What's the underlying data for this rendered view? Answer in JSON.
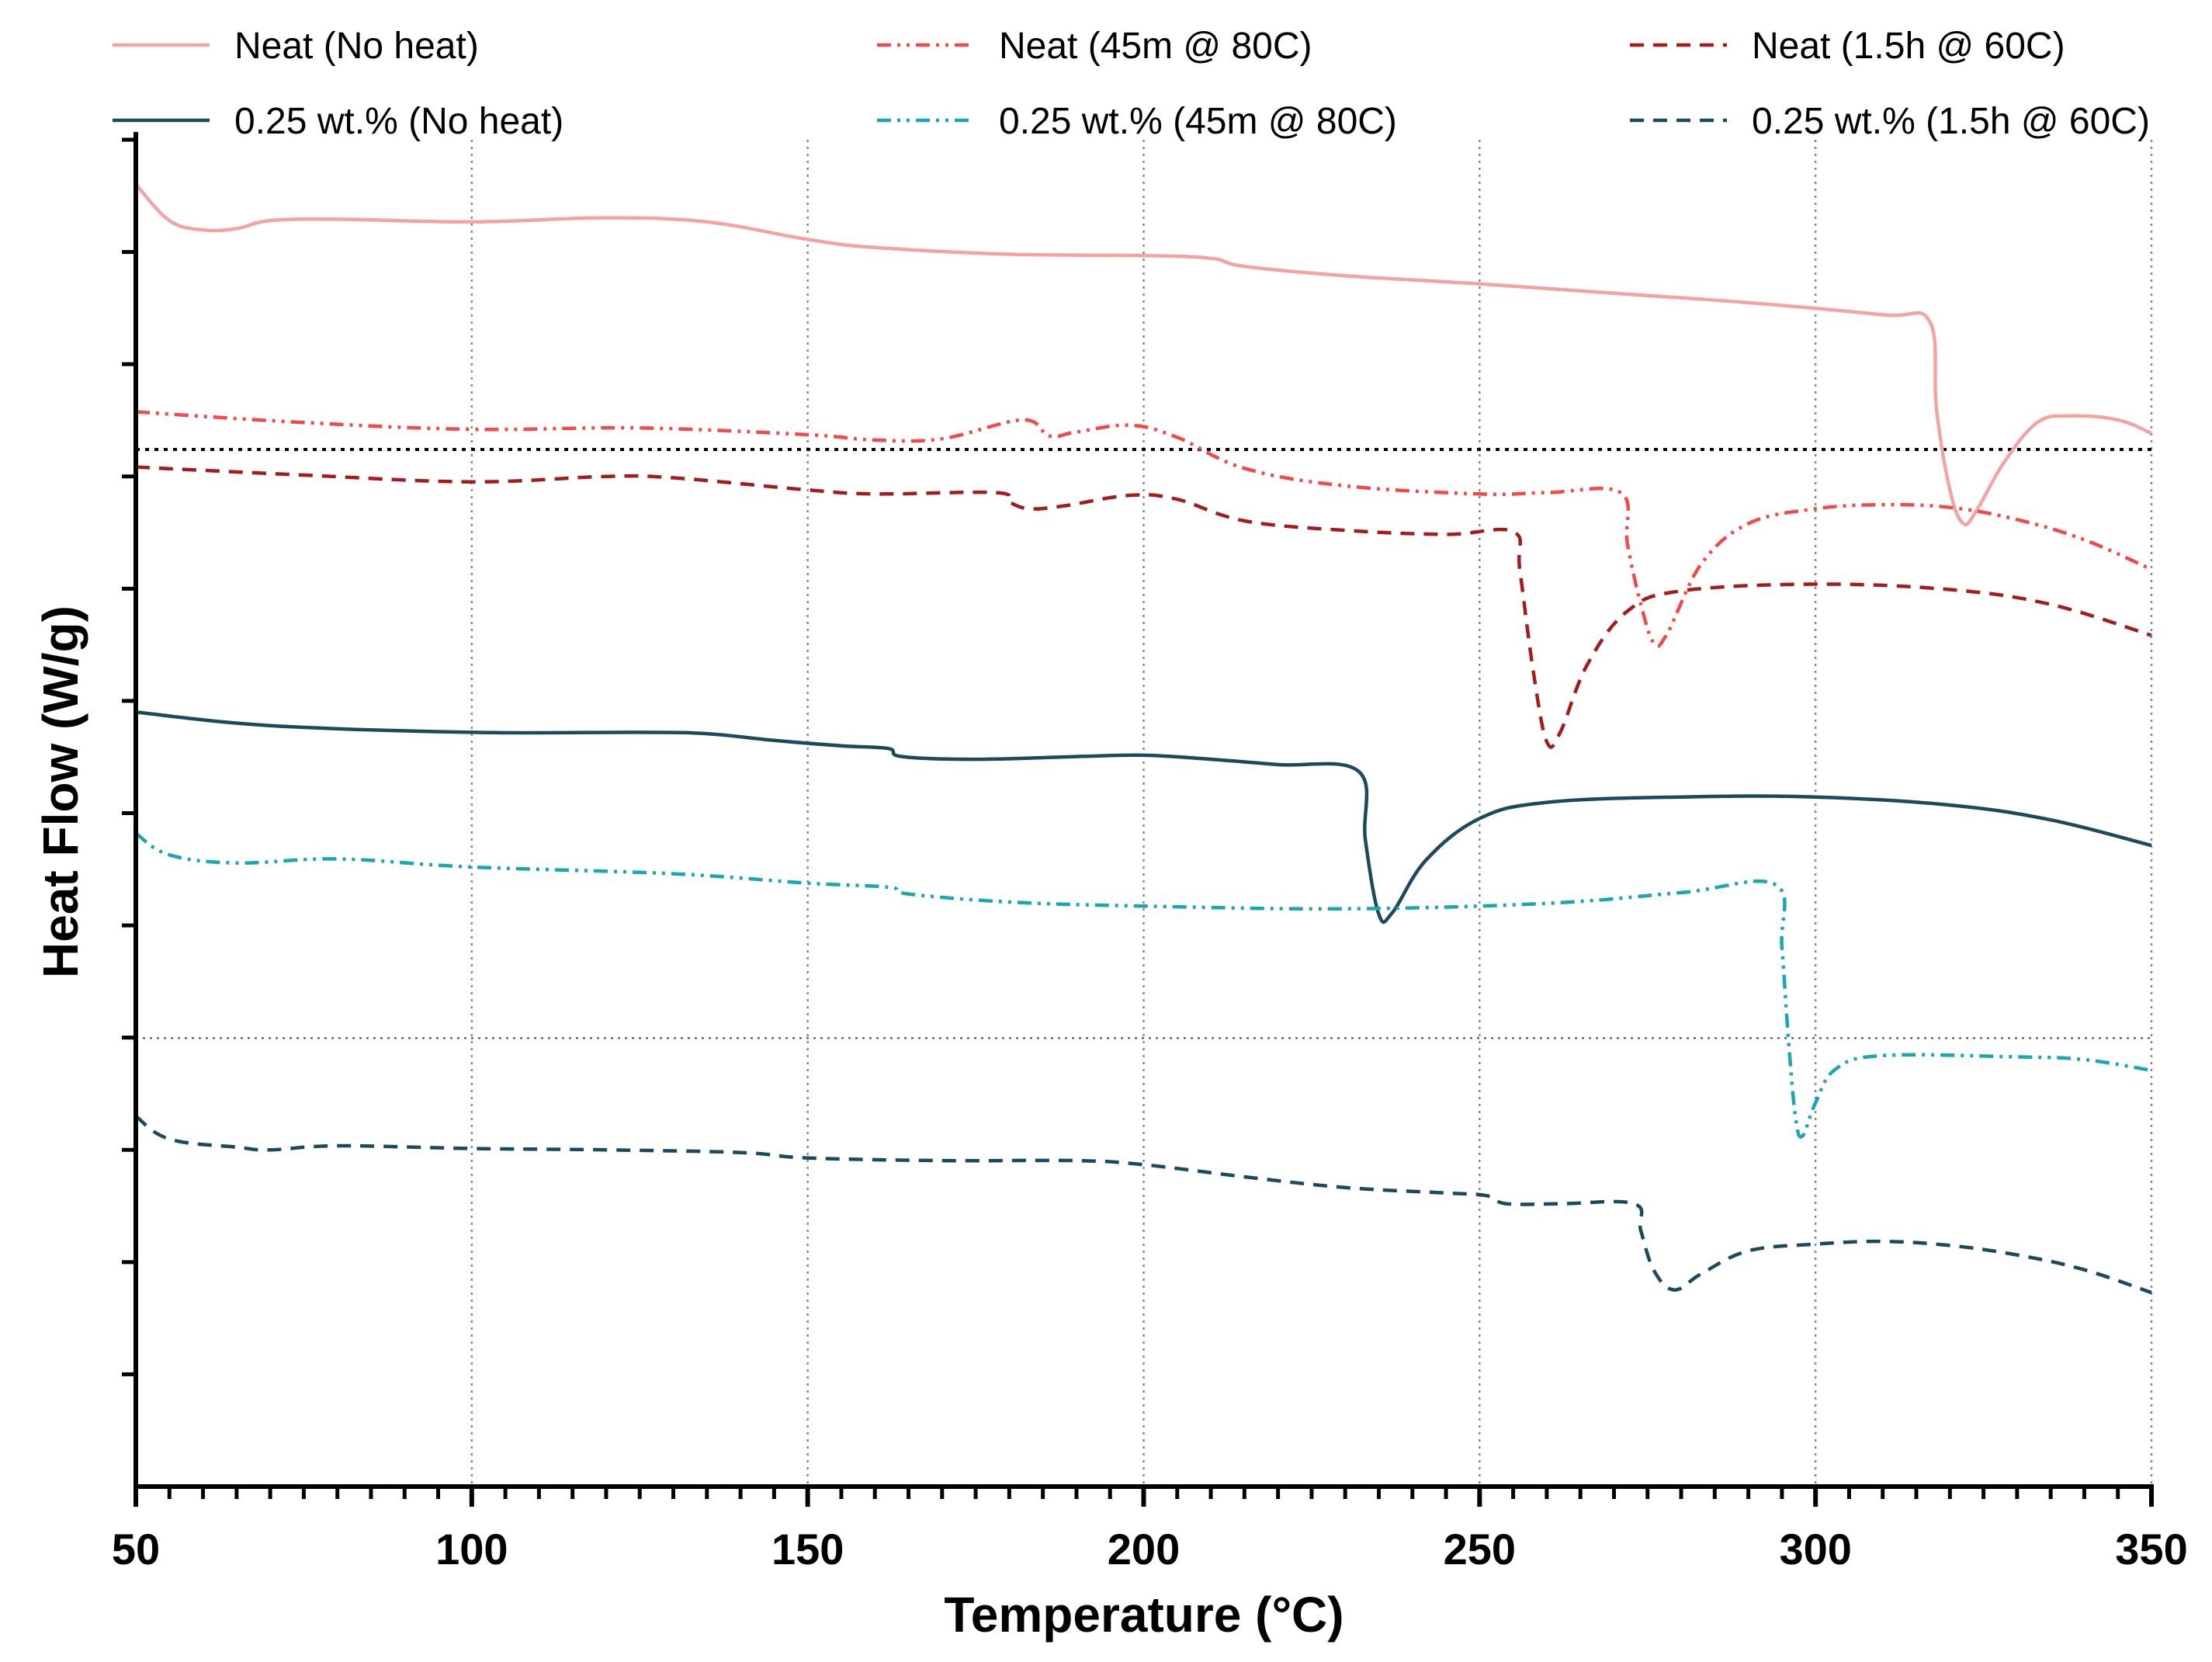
{
  "chart_data": {
    "type": "line",
    "title": "",
    "xlabel": "Temperature (°C)",
    "ylabel": "Heat Flow (W/g)",
    "xlim": [
      50,
      350
    ],
    "ylim": [
      0,
      100
    ],
    "x_ticks": [
      50,
      100,
      150,
      200,
      250,
      300,
      350
    ],
    "x_tick_labels": [
      "50",
      "100",
      "150",
      "200",
      "250",
      "300",
      "350"
    ],
    "y_tick_labels_visible": false,
    "reference_lines_y": [
      77,
      33.3
    ],
    "grid": "vertical dotted at major x ticks",
    "legend_position": "top",
    "series": [
      {
        "name": "Neat (No heat)",
        "color": "#f4a3a3",
        "style": "solid",
        "points": [
          [
            50,
            96.7
          ],
          [
            55,
            94.0
          ],
          [
            60,
            93.3
          ],
          [
            65,
            93.4
          ],
          [
            70,
            94.0
          ],
          [
            80,
            94.1
          ],
          [
            100,
            93.9
          ],
          [
            120,
            94.2
          ],
          [
            135,
            93.9
          ],
          [
            150,
            92.6
          ],
          [
            160,
            92.0
          ],
          [
            180,
            91.5
          ],
          [
            200,
            91.4
          ],
          [
            210,
            91.2
          ],
          [
            215,
            90.6
          ],
          [
            230,
            89.9
          ],
          [
            250,
            89.3
          ],
          [
            270,
            88.6
          ],
          [
            290,
            87.9
          ],
          [
            310,
            87.0
          ],
          [
            317,
            86.5
          ],
          [
            318,
            80.0
          ],
          [
            320,
            74.0
          ],
          [
            322,
            71.5
          ],
          [
            324,
            72.5
          ],
          [
            328,
            76.0
          ],
          [
            333,
            79.0
          ],
          [
            338,
            79.5
          ],
          [
            345,
            79.2
          ],
          [
            350,
            78.2
          ]
        ]
      },
      {
        "name": "Neat (45m @ 80C)",
        "color": "#f24a4a",
        "style": "dash-dot-dot",
        "points": [
          [
            50,
            79.8
          ],
          [
            75,
            79.0
          ],
          [
            100,
            78.5
          ],
          [
            125,
            78.6
          ],
          [
            150,
            78.1
          ],
          [
            160,
            77.7
          ],
          [
            170,
            77.8
          ],
          [
            182,
            79.2
          ],
          [
            186,
            78.0
          ],
          [
            190,
            78.3
          ],
          [
            198,
            78.8
          ],
          [
            205,
            77.9
          ],
          [
            215,
            75.6
          ],
          [
            230,
            74.3
          ],
          [
            250,
            73.7
          ],
          [
            260,
            73.8
          ],
          [
            271,
            73.8
          ],
          [
            272,
            70.0
          ],
          [
            274,
            65.5
          ],
          [
            276,
            62.6
          ],
          [
            278,
            63.4
          ],
          [
            283,
            68.5
          ],
          [
            290,
            71.5
          ],
          [
            300,
            72.6
          ],
          [
            310,
            72.9
          ],
          [
            320,
            72.7
          ],
          [
            330,
            71.8
          ],
          [
            340,
            70.3
          ],
          [
            350,
            68.1
          ]
        ]
      },
      {
        "name": "Neat (1.5h @ 60C)",
        "color": "#a51c1c",
        "style": "dashed",
        "points": [
          [
            50,
            75.7
          ],
          [
            75,
            75.1
          ],
          [
            100,
            74.6
          ],
          [
            120,
            75.0
          ],
          [
            130,
            74.9
          ],
          [
            150,
            74.0
          ],
          [
            160,
            73.7
          ],
          [
            178,
            73.8
          ],
          [
            180,
            73.1
          ],
          [
            183,
            72.6
          ],
          [
            188,
            72.8
          ],
          [
            198,
            73.6
          ],
          [
            205,
            73.3
          ],
          [
            215,
            71.7
          ],
          [
            230,
            71.0
          ],
          [
            245,
            70.7
          ],
          [
            255,
            70.9
          ],
          [
            256,
            68.0
          ],
          [
            258,
            60.5
          ],
          [
            260,
            55.3
          ],
          [
            262,
            56.0
          ],
          [
            266,
            61.0
          ],
          [
            272,
            65.0
          ],
          [
            280,
            66.5
          ],
          [
            300,
            67.0
          ],
          [
            320,
            66.6
          ],
          [
            335,
            65.5
          ],
          [
            350,
            63.2
          ]
        ]
      },
      {
        "name": "0.25 wt.% (No heat)",
        "color": "#1b4a5e",
        "style": "solid",
        "points": [
          [
            50,
            57.5
          ],
          [
            70,
            56.5
          ],
          [
            100,
            56.0
          ],
          [
            125,
            56.0
          ],
          [
            135,
            55.9
          ],
          [
            145,
            55.4
          ],
          [
            155,
            55.0
          ],
          [
            162,
            54.8
          ],
          [
            164,
            54.2
          ],
          [
            175,
            54.0
          ],
          [
            190,
            54.2
          ],
          [
            200,
            54.3
          ],
          [
            210,
            54.0
          ],
          [
            220,
            53.6
          ],
          [
            232,
            53.1
          ],
          [
            233,
            48.0
          ],
          [
            235,
            42.5
          ],
          [
            237,
            42.6
          ],
          [
            242,
            46.5
          ],
          [
            250,
            49.6
          ],
          [
            260,
            50.8
          ],
          [
            280,
            51.2
          ],
          [
            300,
            51.2
          ],
          [
            320,
            50.6
          ],
          [
            335,
            49.5
          ],
          [
            350,
            47.6
          ]
        ]
      },
      {
        "name": "0.25 wt.% (45m @ 80C)",
        "color": "#1aa6b2",
        "style": "dash-dot-dot",
        "points": [
          [
            50,
            48.5
          ],
          [
            55,
            46.9
          ],
          [
            65,
            46.3
          ],
          [
            80,
            46.6
          ],
          [
            100,
            46.0
          ],
          [
            130,
            45.5
          ],
          [
            150,
            44.8
          ],
          [
            162,
            44.5
          ],
          [
            165,
            44.0
          ],
          [
            180,
            43.4
          ],
          [
            200,
            43.1
          ],
          [
            230,
            42.9
          ],
          [
            260,
            43.3
          ],
          [
            280,
            44.1
          ],
          [
            294,
            44.7
          ],
          [
            295,
            40.0
          ],
          [
            296,
            33.0
          ],
          [
            297,
            27.5
          ],
          [
            298,
            26.0
          ],
          [
            300,
            28.5
          ],
          [
            303,
            31.0
          ],
          [
            310,
            32.0
          ],
          [
            330,
            31.9
          ],
          [
            340,
            31.7
          ],
          [
            350,
            30.9
          ]
        ]
      },
      {
        "name": "0.25 wt.% (1.5h @ 60C)",
        "color": "#1b4a5e",
        "style": "dashed",
        "points": [
          [
            50,
            27.5
          ],
          [
            55,
            25.8
          ],
          [
            65,
            25.2
          ],
          [
            70,
            25.0
          ],
          [
            80,
            25.3
          ],
          [
            100,
            25.1
          ],
          [
            120,
            25.0
          ],
          [
            140,
            24.8
          ],
          [
            150,
            24.4
          ],
          [
            170,
            24.2
          ],
          [
            190,
            24.2
          ],
          [
            200,
            23.9
          ],
          [
            215,
            23.0
          ],
          [
            230,
            22.2
          ],
          [
            245,
            21.8
          ],
          [
            251,
            21.6
          ],
          [
            254,
            21.0
          ],
          [
            262,
            21.0
          ],
          [
            273,
            21.0
          ],
          [
            274,
            19.0
          ],
          [
            276,
            16.0
          ],
          [
            279,
            14.6
          ],
          [
            283,
            15.8
          ],
          [
            290,
            17.5
          ],
          [
            300,
            18.0
          ],
          [
            310,
            18.2
          ],
          [
            320,
            17.9
          ],
          [
            330,
            17.2
          ],
          [
            340,
            16.1
          ],
          [
            350,
            14.4
          ]
        ]
      }
    ]
  }
}
